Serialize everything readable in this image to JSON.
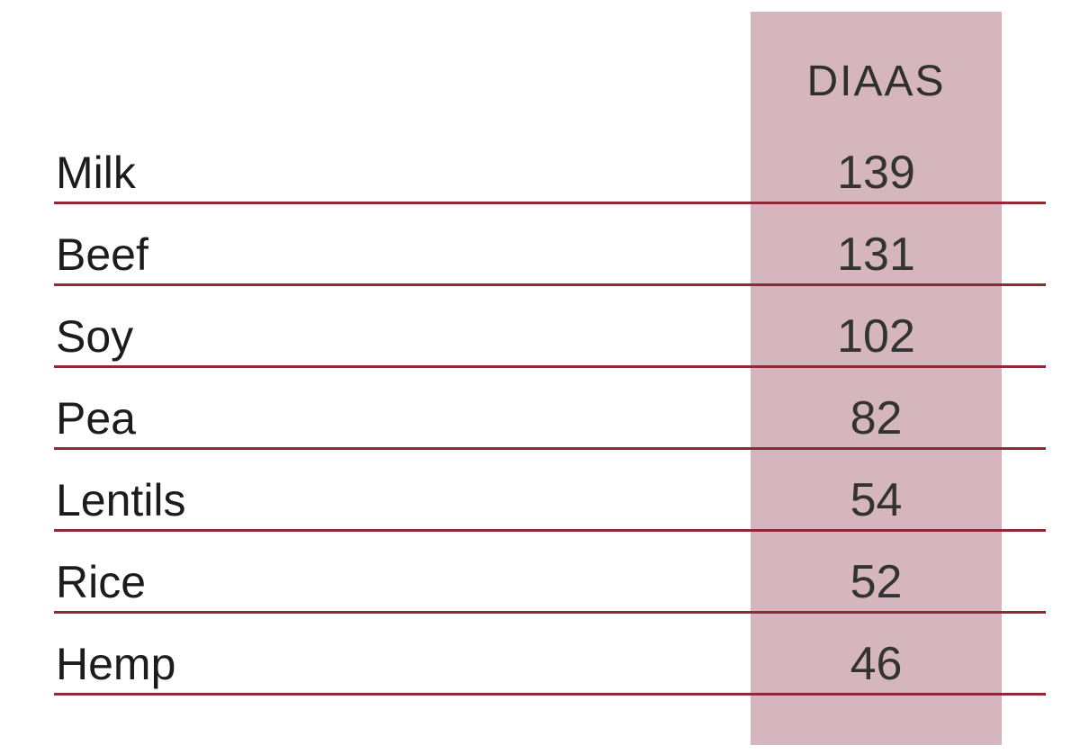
{
  "table": {
    "header": {
      "value_column_label": "DIAAS"
    },
    "rows": [
      {
        "label": "Milk",
        "value": "139"
      },
      {
        "label": "Beef",
        "value": "131"
      },
      {
        "label": "Soy",
        "value": "102"
      },
      {
        "label": "Pea",
        "value": "82"
      },
      {
        "label": "Lentils",
        "value": "54"
      },
      {
        "label": "Rice",
        "value": "52"
      },
      {
        "label": "Hemp",
        "value": "46"
      }
    ]
  },
  "colors": {
    "highlight_column": "#d6b6be",
    "row_divider": "#8e2936",
    "label_text": "#1c1c1c",
    "value_text": "#333333",
    "background": "#ffffff"
  },
  "chart_data": {
    "type": "table",
    "title": "",
    "value_column_label": "DIAAS",
    "categories": [
      "Milk",
      "Beef",
      "Soy",
      "Pea",
      "Lentils",
      "Rice",
      "Hemp"
    ],
    "values": [
      139,
      131,
      102,
      82,
      54,
      52,
      46
    ]
  }
}
